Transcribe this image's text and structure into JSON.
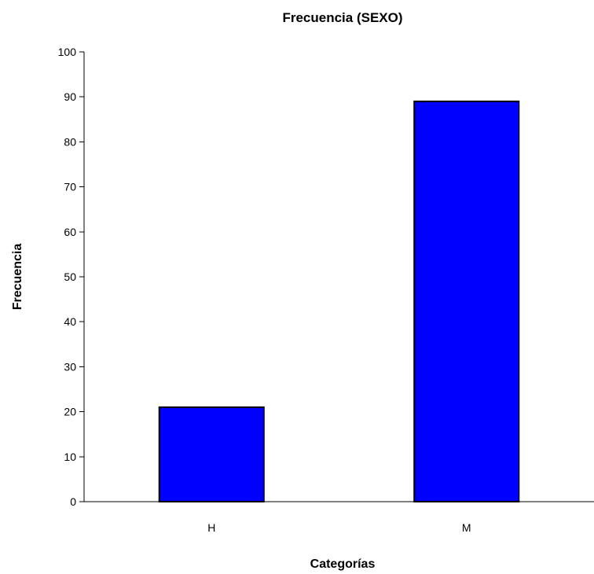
{
  "chart_data": {
    "type": "bar",
    "title": "Frecuencia (SEXO)",
    "xlabel": "Categorías",
    "ylabel": "Frecuencia",
    "categories": [
      "H",
      "M"
    ],
    "values": [
      21,
      89
    ],
    "ylim": [
      0,
      100
    ],
    "yticks": [
      "0",
      "10",
      "20",
      "30",
      "40",
      "50",
      "60",
      "70",
      "80",
      "90",
      "100"
    ],
    "grid": false,
    "legend": "none",
    "colors": {
      "bar_fill": "#0000ff",
      "bar_stroke": "#000000",
      "axis": "#000000",
      "background": "#ffffff"
    }
  }
}
